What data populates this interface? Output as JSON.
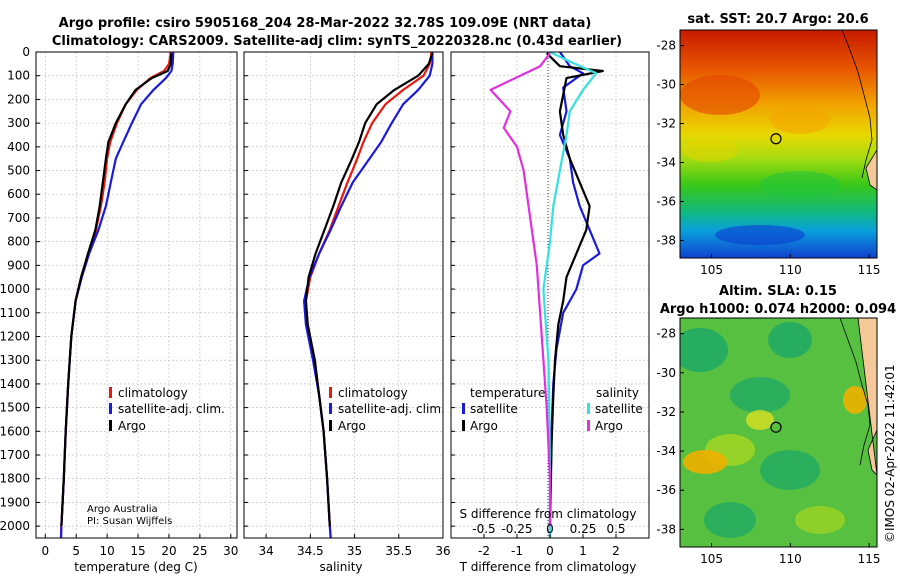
{
  "header": {
    "title_line1": "Argo profile: csiro 5905168_204 28-Mar-2022 32.78S 109.09E (NRT data)",
    "title_line2": "Climatology: CARS2009. Satellite-adj clim: synTS_20220328.nc (0.43d earlier)"
  },
  "colors": {
    "climatology": "#e8180e",
    "satellite_adj": "#1a1adc",
    "argo": "#000000",
    "sal_satellite": "#34e0e0",
    "sal_argo": "#e030e0",
    "grid": "#b8b8b8"
  },
  "depth_axis": {
    "ylim": [
      0,
      2050
    ],
    "ticks": [
      0,
      100,
      200,
      300,
      400,
      500,
      600,
      700,
      800,
      900,
      1000,
      1100,
      1200,
      1300,
      1400,
      1500,
      1600,
      1700,
      1800,
      1900,
      2000
    ]
  },
  "chart_data": [
    {
      "id": "temperature",
      "type": "line",
      "xlabel": "temperature (deg C)",
      "xlim": [
        -1.5,
        31
      ],
      "xticks": [
        0,
        5,
        10,
        15,
        20,
        25,
        30
      ],
      "legend": [
        "climatology",
        "satellite-adj. clim.",
        "Argo"
      ],
      "credit_line1": "Argo Australia",
      "credit_line2": "PI: Susan Wijffels",
      "series": [
        {
          "name": "climatology",
          "color_key": "climatology",
          "x": [
            20.3,
            20.0,
            19.2,
            17.0,
            14.8,
            13.0,
            11.6,
            10.5,
            10.0,
            9.6,
            9.0,
            8.2,
            7.0,
            5.8,
            4.9,
            4.2,
            3.7,
            3.3,
            3.0,
            2.7,
            2.6,
            2.55
          ],
          "depth": [
            0,
            50,
            80,
            110,
            160,
            220,
            300,
            380,
            450,
            550,
            650,
            750,
            850,
            950,
            1050,
            1200,
            1400,
            1600,
            1800,
            1950,
            2000,
            2050
          ]
        },
        {
          "name": "satellite-adj. clim.",
          "color_key": "satellite_adj",
          "x": [
            20.7,
            20.6,
            20.4,
            19.5,
            17.5,
            15.5,
            14.0,
            12.6,
            11.4,
            10.6,
            9.8,
            8.6,
            7.1,
            5.9,
            4.9,
            4.2,
            3.7,
            3.3,
            3.0,
            2.7,
            2.6,
            2.55
          ],
          "depth": [
            0,
            50,
            80,
            110,
            160,
            220,
            300,
            380,
            450,
            550,
            650,
            750,
            850,
            950,
            1050,
            1200,
            1400,
            1600,
            1800,
            1950,
            2000,
            2050
          ]
        },
        {
          "name": "Argo",
          "color_key": "argo",
          "x": [
            20.4,
            20.3,
            19.8,
            17.2,
            14.6,
            13.0,
            11.4,
            10.2,
            9.8,
            9.3,
            8.8,
            8.1,
            6.9,
            5.8,
            4.9,
            4.2,
            3.7,
            3.3,
            3.0,
            2.7,
            2.6
          ],
          "depth": [
            5,
            50,
            80,
            110,
            160,
            220,
            300,
            380,
            450,
            550,
            650,
            750,
            850,
            950,
            1050,
            1200,
            1400,
            1600,
            1800,
            1950,
            2000
          ]
        }
      ]
    },
    {
      "id": "salinity",
      "type": "line",
      "xlabel": "salinity",
      "xlim": [
        33.75,
        36.0
      ],
      "xticks": [
        34,
        34.5,
        35,
        35.5,
        36
      ],
      "xtick_labels": [
        "34",
        "34.5",
        "35",
        "35.5",
        "36"
      ],
      "legend": [
        "climatology",
        "satellite-adj. clim.",
        "Argo"
      ],
      "series": [
        {
          "name": "climatology",
          "color_key": "climatology",
          "x": [
            35.87,
            35.85,
            35.78,
            35.55,
            35.35,
            35.2,
            35.1,
            35.02,
            34.92,
            34.82,
            34.72,
            34.6,
            34.5,
            34.45,
            34.47,
            34.55,
            34.6,
            34.65,
            34.69,
            34.72,
            34.73
          ],
          "depth": [
            0,
            50,
            100,
            160,
            220,
            300,
            380,
            460,
            550,
            650,
            750,
            850,
            950,
            1050,
            1150,
            1300,
            1450,
            1600,
            1800,
            2000,
            2050
          ]
        },
        {
          "name": "satellite-adj. clim.",
          "color_key": "satellite_adj",
          "x": [
            35.88,
            35.88,
            35.85,
            35.72,
            35.55,
            35.42,
            35.3,
            35.15,
            34.98,
            34.85,
            34.73,
            34.6,
            34.49,
            34.43,
            34.45,
            34.53,
            34.6,
            34.65,
            34.69,
            34.72,
            34.73
          ],
          "depth": [
            0,
            50,
            100,
            160,
            220,
            300,
            380,
            460,
            550,
            650,
            750,
            850,
            950,
            1050,
            1150,
            1300,
            1450,
            1600,
            1800,
            2000,
            2050
          ]
        },
        {
          "name": "Argo",
          "color_key": "argo",
          "x": [
            35.88,
            35.84,
            35.72,
            35.45,
            35.25,
            35.12,
            35.05,
            34.96,
            34.85,
            34.76,
            34.66,
            34.56,
            34.48,
            34.45,
            34.47,
            34.55,
            34.6,
            34.65,
            34.69,
            34.72
          ],
          "depth": [
            5,
            50,
            100,
            160,
            220,
            300,
            380,
            460,
            550,
            650,
            750,
            850,
            950,
            1050,
            1150,
            1300,
            1450,
            1600,
            1800,
            2000
          ]
        }
      ]
    },
    {
      "id": "difference",
      "type": "line",
      "xlabel": "T difference from climatology",
      "xlabel_top": "S difference from climatology",
      "xlim": [
        -3,
        3
      ],
      "xticks": [
        -2,
        -1,
        0,
        1,
        2
      ],
      "s_ticks": [
        -0.5,
        -0.25,
        0,
        0.25,
        0.5
      ],
      "s_tick_labels": [
        "-0.5",
        "-0.25",
        "0",
        "0.25",
        "0.5"
      ],
      "legend_temperature_title": "temperature",
      "legend_salinity_title": "salinity",
      "legend_temperature": [
        "satellite",
        "Argo"
      ],
      "legend_salinity": [
        "satellite",
        "Argo"
      ],
      "series": [
        {
          "name": "temperature satellite",
          "color_key": "satellite_adj",
          "x": [
            0.3,
            0.6,
            1.0,
            0.4,
            0.5,
            0.3,
            0.6,
            0.7,
            0.9,
            1.2,
            1.5,
            1.0,
            0.8,
            0.4,
            0.2,
            0.1,
            0.05,
            0.02,
            0.0,
            0.0
          ],
          "depth": [
            0,
            60,
            90,
            150,
            250,
            350,
            450,
            550,
            650,
            750,
            850,
            900,
            1000,
            1100,
            1250,
            1400,
            1600,
            1800,
            1950,
            2050
          ]
        },
        {
          "name": "temperature Argo",
          "color_key": "argo",
          "x": [
            -0.1,
            0.3,
            1.6,
            0.5,
            0.3,
            0.4,
            0.6,
            0.9,
            1.2,
            1.1,
            0.8,
            0.5,
            0.4,
            0.25,
            0.15,
            0.1,
            0.05,
            0.02,
            0.0
          ],
          "depth": [
            5,
            60,
            80,
            110,
            250,
            350,
            450,
            550,
            650,
            750,
            850,
            950,
            1050,
            1150,
            1300,
            1450,
            1650,
            1850,
            2000
          ]
        },
        {
          "name": "salinity satellite",
          "color_key": "sal_satellite",
          "x": [
            0.0,
            0.6,
            1.4,
            1.0,
            0.6,
            0.5,
            0.3,
            0.1,
            0.0,
            -0.1,
            -0.2,
            -0.15,
            -0.05,
            -0.02,
            0.0,
            0.0
          ],
          "depth": [
            0,
            40,
            90,
            160,
            250,
            350,
            500,
            650,
            800,
            900,
            1000,
            1100,
            1300,
            1500,
            1800,
            2050
          ]
        },
        {
          "name": "salinity Argo",
          "color_key": "sal_argo",
          "x": [
            0.0,
            -0.3,
            -1.8,
            -1.2,
            -1.4,
            -1.0,
            -0.8,
            -0.7,
            -0.6,
            -0.5,
            -0.4,
            -0.3,
            -0.2,
            -0.1,
            0.0,
            0.0
          ],
          "depth": [
            5,
            60,
            160,
            250,
            320,
            400,
            500,
            600,
            700,
            800,
            900,
            1100,
            1300,
            1500,
            1800,
            2000
          ]
        }
      ]
    }
  ],
  "sst_map": {
    "title": "sat. SST: 20.7 Argo: 20.6",
    "xticks": [
      105,
      110,
      115
    ],
    "xlim": [
      103,
      115.5
    ],
    "yticks": [
      -28,
      -30,
      -32,
      -34,
      -36,
      -38
    ],
    "ylim": [
      -38.9,
      -27.2
    ],
    "argo_lon": 109.09,
    "argo_lat": -32.78
  },
  "sla_map": {
    "title_line1": "Altim. SLA: 0.15",
    "title_line2": "Argo h1000: 0.074 h2000: 0.094",
    "xticks": [
      105,
      110,
      115
    ],
    "xlim": [
      103,
      115.5
    ],
    "yticks": [
      -28,
      -30,
      -32,
      -34,
      -36,
      -38
    ],
    "ylim": [
      -38.9,
      -27.2
    ],
    "argo_lon": 109.09,
    "argo_lat": -32.78
  },
  "watermark": "©IMOS 02-Apr-2022 11:42:01"
}
